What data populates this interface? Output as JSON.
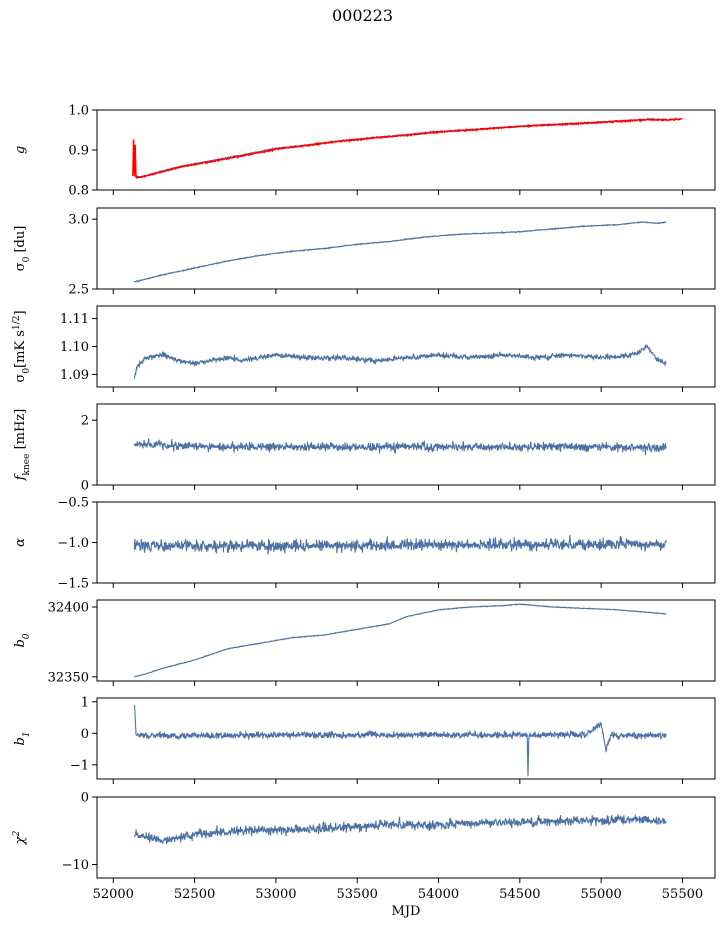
{
  "title": "000223",
  "chart_data": [
    {
      "type": "line",
      "ylabel": "g",
      "ylabel_html": "g",
      "xlim": [
        51900,
        55700
      ],
      "ylim": [
        0.8,
        1.0
      ],
      "yticks": [
        0.8,
        0.9,
        1.0
      ],
      "ytick_labels": [
        "0.8",
        "0.9",
        "1.0"
      ],
      "series": [
        {
          "color": "#4c72a4",
          "seed": 11,
          "noise": 0.0015,
          "x": [
            52130,
            52170,
            52250,
            52400,
            52600,
            52800,
            53000,
            53200,
            53400,
            53600,
            53800,
            54000,
            54200,
            54400,
            54600,
            54800,
            55000,
            55200,
            55300,
            55400
          ],
          "y": [
            0.835,
            0.833,
            0.842,
            0.858,
            0.873,
            0.888,
            0.904,
            0.913,
            0.923,
            0.931,
            0.938,
            0.946,
            0.951,
            0.957,
            0.962,
            0.966,
            0.97,
            0.975,
            0.977,
            0.976
          ]
        },
        {
          "color": "#ff0000",
          "seed": 12,
          "noise": 0.002,
          "x": [
            52120,
            52125,
            52130,
            52135,
            52140,
            52170,
            52250,
            52400,
            52600,
            52800,
            53000,
            53200,
            53400,
            53600,
            53800,
            54000,
            54200,
            54400,
            54600,
            54800,
            55000,
            55200,
            55300,
            55400,
            55500
          ],
          "y": [
            0.835,
            0.925,
            0.835,
            0.912,
            0.832,
            0.832,
            0.84,
            0.856,
            0.871,
            0.886,
            0.902,
            0.912,
            0.922,
            0.93,
            0.937,
            0.945,
            0.95,
            0.956,
            0.961,
            0.965,
            0.969,
            0.974,
            0.976,
            0.975,
            0.978
          ]
        }
      ]
    },
    {
      "type": "line",
      "ylabel": "σ0 [du]",
      "ylabel_html": "σ<tspan baseline-shift='sub' font-size='9'>0</tspan> [du]",
      "xlim": [
        51900,
        55700
      ],
      "ylim": [
        2.5,
        3.08
      ],
      "yticks": [
        2.5,
        3.0
      ],
      "ytick_labels": [
        "2.5",
        "3.0"
      ],
      "series": [
        {
          "color": "#4c72a4",
          "seed": 21,
          "noise": 0.004,
          "x": [
            52130,
            52300,
            52500,
            52700,
            52900,
            53100,
            53300,
            53500,
            53700,
            53900,
            54100,
            54300,
            54500,
            54700,
            54900,
            55100,
            55250,
            55350,
            55400
          ],
          "y": [
            2.55,
            2.6,
            2.65,
            2.7,
            2.74,
            2.77,
            2.79,
            2.82,
            2.84,
            2.87,
            2.89,
            2.9,
            2.91,
            2.93,
            2.95,
            2.96,
            2.98,
            2.97,
            2.98
          ]
        }
      ]
    },
    {
      "type": "line",
      "ylabel": "σ0[mK s^1/2]",
      "ylabel_html": "σ<tspan baseline-shift='sub' font-size='9'>0</tspan>[mK s<tspan baseline-shift='super' font-size='9'>1/2</tspan>]",
      "xlim": [
        51900,
        55700
      ],
      "ylim": [
        1.0855,
        1.1145
      ],
      "yticks": [
        1.09,
        1.1,
        1.11
      ],
      "ytick_labels": [
        "1.09",
        "1.10",
        "1.11"
      ],
      "series": [
        {
          "color": "#4c72a4",
          "seed": 31,
          "noise": 0.0012,
          "x": [
            52130,
            52150,
            52200,
            52300,
            52400,
            52500,
            52600,
            52700,
            52800,
            52900,
            53000,
            53200,
            53400,
            53600,
            53800,
            54000,
            54200,
            54400,
            54600,
            54800,
            55000,
            55200,
            55280,
            55350,
            55400
          ],
          "y": [
            1.089,
            1.093,
            1.096,
            1.097,
            1.095,
            1.094,
            1.095,
            1.096,
            1.095,
            1.096,
            1.097,
            1.096,
            1.096,
            1.095,
            1.096,
            1.097,
            1.096,
            1.097,
            1.096,
            1.097,
            1.096,
            1.097,
            1.1,
            1.095,
            1.094
          ]
        }
      ]
    },
    {
      "type": "line",
      "ylabel": "fknee [mHz]",
      "ylabel_html": "<tspan font-style='italic'>f</tspan><tspan baseline-shift='sub' font-size='9'>knee</tspan> [mHz]",
      "xlim": [
        51900,
        55700
      ],
      "ylim": [
        0,
        2.5
      ],
      "yticks": [
        0,
        2
      ],
      "ytick_labels": [
        "0",
        "2"
      ],
      "series": [
        {
          "color": "#4c72a4",
          "seed": 41,
          "noise": 0.17,
          "x": [
            52130,
            52600,
            53200,
            53800,
            54400,
            55000,
            55400
          ],
          "y": [
            1.25,
            1.18,
            1.17,
            1.17,
            1.17,
            1.17,
            1.15
          ]
        }
      ]
    },
    {
      "type": "line",
      "ylabel": "α",
      "ylabel_html": "α",
      "xlim": [
        51900,
        55700
      ],
      "ylim": [
        -1.5,
        -0.5
      ],
      "yticks": [
        -1.5,
        -1.0,
        -0.5
      ],
      "ytick_labels": [
        "−1.5",
        "−1.0",
        "−0.5"
      ],
      "series": [
        {
          "color": "#4c72a4",
          "seed": 51,
          "noise": 0.09,
          "x": [
            52130,
            52600,
            53200,
            53800,
            54400,
            55000,
            55400
          ],
          "y": [
            -1.04,
            -1.04,
            -1.04,
            -1.03,
            -1.02,
            -1.02,
            -1.03
          ]
        }
      ]
    },
    {
      "type": "line",
      "ylabel": "b0",
      "ylabel_html": "<tspan font-style='italic'>b</tspan><tspan baseline-shift='sub' font-size='9'>0</tspan>",
      "xlim": [
        51900,
        55700
      ],
      "ylim": [
        32347,
        32405
      ],
      "yticks": [
        32350,
        32400
      ],
      "ytick_labels": [
        "32350",
        "32400"
      ],
      "series": [
        {
          "color": "#4c72a4",
          "seed": 61,
          "noise": 0.3,
          "x": [
            52130,
            52200,
            52300,
            52500,
            52700,
            52900,
            53100,
            53300,
            53500,
            53700,
            53800,
            54000,
            54200,
            54400,
            54500,
            54700,
            54900,
            55100,
            55300,
            55400
          ],
          "y": [
            32350,
            32352,
            32356,
            32362,
            32370,
            32374,
            32378,
            32380,
            32384,
            32388,
            32393,
            32398,
            32400,
            32401,
            32402,
            32400,
            32399,
            32398,
            32396,
            32395
          ]
        }
      ]
    },
    {
      "type": "line",
      "ylabel": "b1",
      "ylabel_html": "<tspan font-style='italic'>b</tspan><tspan baseline-shift='sub' font-size='9'>1</tspan>",
      "xlim": [
        51900,
        55700
      ],
      "ylim": [
        -1.45,
        1.12
      ],
      "yticks": [
        -1,
        0,
        1
      ],
      "ytick_labels": [
        "−1",
        "0",
        "1"
      ],
      "series": [
        {
          "color": "#4c72a4",
          "seed": 71,
          "noise": 0.13,
          "x": [
            52130,
            52140,
            52160,
            52400,
            52800,
            53200,
            53600,
            54000,
            54400,
            54545,
            54550,
            54556,
            54700,
            54900,
            55000,
            55030,
            55060,
            55200,
            55300,
            55400
          ],
          "y": [
            1.0,
            -0.05,
            -0.05,
            -0.08,
            -0.06,
            -0.05,
            -0.05,
            -0.05,
            -0.05,
            -0.05,
            -1.35,
            -0.05,
            -0.05,
            -0.05,
            0.3,
            -0.5,
            -0.05,
            -0.1,
            -0.05,
            -0.1
          ]
        }
      ]
    },
    {
      "type": "line",
      "ylabel": "χ^2",
      "ylabel_html": "χ<tspan baseline-shift='super' font-size='9'>2</tspan>",
      "xlim": [
        51900,
        55700
      ],
      "ylim": [
        -12,
        0
      ],
      "yticks": [
        -10,
        0
      ],
      "ytick_labels": [
        "−10",
        "0"
      ],
      "xticks": [
        52000,
        52500,
        53000,
        53500,
        54000,
        54500,
        55000,
        55500
      ],
      "xtick_labels": [
        "52000",
        "52500",
        "53000",
        "53500",
        "54000",
        "54500",
        "55000",
        "55500"
      ],
      "xlabel": "MJD",
      "series": [
        {
          "color": "#4c72a4",
          "seed": 81,
          "noise": 0.9,
          "x": [
            52130,
            52300,
            52500,
            52800,
            53100,
            53400,
            53700,
            54000,
            54300,
            54600,
            54900,
            55200,
            55400
          ],
          "y": [
            -5.5,
            -6.5,
            -5.5,
            -5.0,
            -4.8,
            -4.5,
            -4.0,
            -4.2,
            -3.8,
            -3.7,
            -3.5,
            -3.3,
            -3.6
          ]
        }
      ]
    }
  ]
}
